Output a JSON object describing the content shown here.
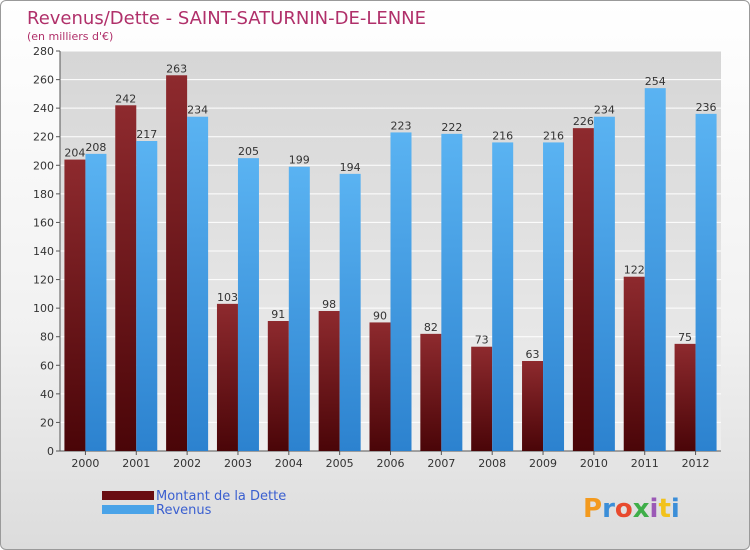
{
  "chart_data": {
    "type": "bar",
    "title": "Revenus/Dette - SAINT-SATURNIN-DE-LENNE",
    "subtitle": "(en milliers d'€)",
    "categories": [
      "2000",
      "2001",
      "2002",
      "2003",
      "2004",
      "2005",
      "2006",
      "2007",
      "2008",
      "2009",
      "2010",
      "2011",
      "2012"
    ],
    "series": [
      {
        "name": "Montant de la Dette",
        "color": "#7a1a1e",
        "values": [
          204,
          242,
          263,
          103,
          91,
          98,
          90,
          82,
          73,
          63,
          226,
          122,
          75
        ]
      },
      {
        "name": "Revenus",
        "color": "#4aa3e8",
        "values": [
          208,
          217,
          234,
          205,
          199,
          194,
          223,
          222,
          216,
          216,
          234,
          254,
          236
        ]
      }
    ],
    "ylim": [
      0,
      280
    ],
    "ytick_step": 20,
    "grid": true,
    "legend_position": "bottom-left",
    "xlabel": "",
    "ylabel": ""
  },
  "logo": {
    "text": "Proxiti",
    "colors": [
      "#f39a1e",
      "#3b8ed8",
      "#e84a2e",
      "#3fae49",
      "#9b59b6",
      "#f2c21b",
      "#3b8ed8"
    ]
  }
}
